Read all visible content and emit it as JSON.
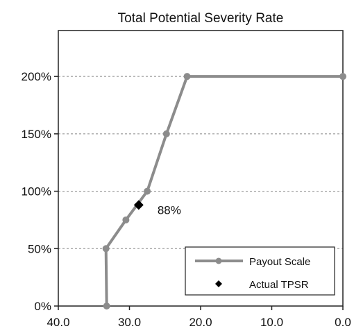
{
  "chart_data": {
    "type": "line",
    "title": "Total Potential Severity Rate",
    "xlabel": "",
    "ylabel": "",
    "xlim": [
      40,
      0
    ],
    "ylim": [
      0,
      240
    ],
    "x_reversed": true,
    "grid": "horizontal dashed",
    "x_ticks": [
      {
        "value": 40,
        "label": "40.0"
      },
      {
        "value": 30,
        "label": "30.0"
      },
      {
        "value": 20,
        "label": "20.0"
      },
      {
        "value": 10,
        "label": "10.0"
      },
      {
        "value": 0,
        "label": "0.0"
      }
    ],
    "y_ticks": [
      {
        "value": 0,
        "label": "0%"
      },
      {
        "value": 50,
        "label": "50%"
      },
      {
        "value": 100,
        "label": "100%"
      },
      {
        "value": 150,
        "label": "150%"
      },
      {
        "value": 200,
        "label": "200%"
      }
    ],
    "series": [
      {
        "name": "Payout Scale",
        "color": "#8c8c8c",
        "marker": "circle",
        "points": [
          {
            "x": 33.2,
            "y": 0
          },
          {
            "x": 33.3,
            "y": 50
          },
          {
            "x": 30.5,
            "y": 75
          },
          {
            "x": 27.5,
            "y": 100
          },
          {
            "x": 24.8,
            "y": 150
          },
          {
            "x": 21.9,
            "y": 200
          },
          {
            "x": 0.0,
            "y": 200
          }
        ]
      },
      {
        "name": "Actual TPSR",
        "color": "#000000",
        "marker": "diamond",
        "points": [
          {
            "x": 28.7,
            "y": 88,
            "label": "88%"
          }
        ]
      }
    ],
    "legend": {
      "position": "bottom-right",
      "entries": [
        "Payout Scale",
        "Actual TPSR"
      ]
    }
  }
}
